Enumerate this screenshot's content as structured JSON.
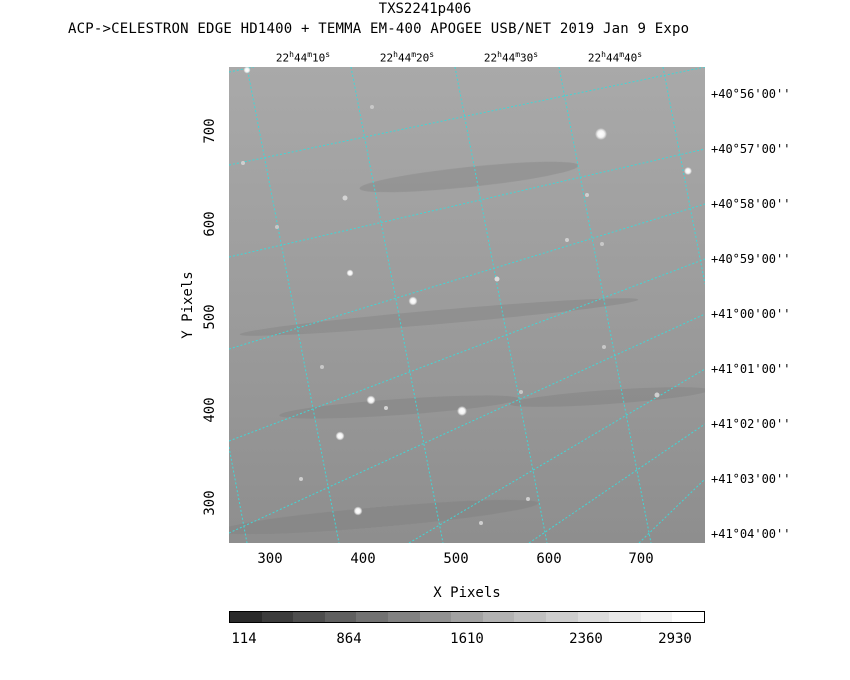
{
  "header": {
    "title": "TXS2241p406",
    "subtitle": "ACP->CELESTRON EDGE HD1400 + TEMMA EM-400 APOGEE USB/NET   2019 Jan  9    Expo"
  },
  "ra_labels": [
    {
      "h": "22",
      "m": "44",
      "s": "10"
    },
    {
      "h": "22",
      "m": "44",
      "s": "20"
    },
    {
      "h": "22",
      "m": "44",
      "s": "30"
    },
    {
      "h": "22",
      "m": "44",
      "s": "40"
    }
  ],
  "dec_labels": [
    "+40°56'00''",
    "+40°57'00''",
    "+40°58'00''",
    "+40°59'00''",
    "+41°00'00''",
    "+41°01'00''",
    "+41°02'00''",
    "+41°03'00''",
    "+41°04'00''"
  ],
  "x_axis": {
    "title": "X Pixels",
    "ticks": [
      "300",
      "400",
      "500",
      "600",
      "700"
    ]
  },
  "y_axis": {
    "title": "Y Pixels",
    "ticks": [
      "300",
      "400",
      "500",
      "600",
      "700"
    ]
  },
  "colorbar": {
    "labels": [
      "114",
      "864",
      "1610",
      "2360",
      "2930"
    ]
  },
  "colors": {
    "grid": "#40d8d8",
    "background": "#ffffff",
    "sky": "#9a9a9a"
  }
}
